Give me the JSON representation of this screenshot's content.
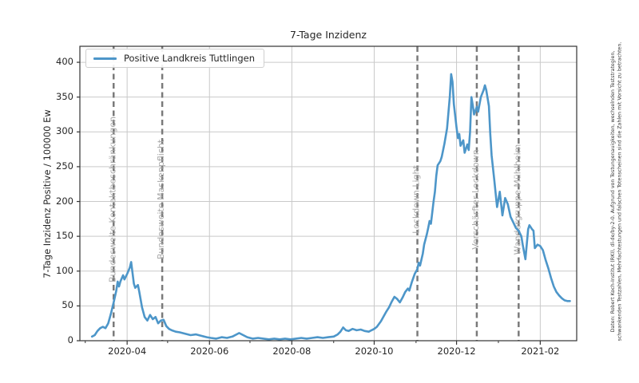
{
  "figure": {
    "background": "#ffffff"
  },
  "caption": {
    "line1": "Daten: Robert Koch-Institut (RKI), dl-de/by-2-0. Aufgrund von Testungenauigkeiten, wechselnden Teststrategien,",
    "line2": "schwankenden Testzahlen, Mehrfachtestungen und falschen Totenscheinen sind die Zahlen mit Vorsicht zu betrachten."
  },
  "chart_data": {
    "type": "line",
    "title": "7-Tage Inzidenz",
    "xlabel": "",
    "ylabel": "7-Tage Inzidenz Positive / 100000 Ew",
    "legend": [
      "Positive Landkreis Tuttlingen"
    ],
    "legend_position": "upper left",
    "grid": true,
    "ylim": [
      0,
      423
    ],
    "y_ticks": [
      0,
      50,
      100,
      150,
      200,
      250,
      300,
      350,
      400
    ],
    "x_ticks": [
      {
        "label": "2020-04",
        "date": "2020-04-01"
      },
      {
        "label": "2020-06",
        "date": "2020-06-01"
      },
      {
        "label": "2020-08",
        "date": "2020-08-01"
      },
      {
        "label": "2020-10",
        "date": "2020-10-01"
      },
      {
        "label": "2020-12",
        "date": "2020-12-01"
      },
      {
        "label": "2021-02",
        "date": "2021-02-01"
      }
    ],
    "x_minor_ticks": [
      "2020-03-01",
      "2020-05-01",
      "2020-07-01",
      "2020-09-01",
      "2020-11-01",
      "2021-01-01"
    ],
    "x_range": [
      "2020-02-26",
      "2021-02-28"
    ],
    "event_lines": [
      {
        "date": "2020-03-22",
        "label": "Bundesweite Kontaktbeschränkungen"
      },
      {
        "date": "2020-04-27",
        "label": "Bundesweite Maskenpflicht"
      },
      {
        "date": "2020-11-02",
        "label": "Lockdown Light"
      },
      {
        "date": "2020-12-16",
        "label": "Verschärfter Lockdown"
      },
      {
        "date": "2021-01-16",
        "label": "Wandergruppe Mühlheim"
      }
    ],
    "colors": {
      "line": "#4d96c9",
      "event_line": "#7a7a7a",
      "event_label": "#a8a8a8",
      "grid": "#c9c9c9",
      "spine": "#333333",
      "text": "#262626"
    },
    "series": [
      {
        "name": "Positive Landkreis Tuttlingen",
        "color": "#4d96c9",
        "points": [
          [
            "2020-03-06",
            6
          ],
          [
            "2020-03-08",
            8
          ],
          [
            "2020-03-10",
            14
          ],
          [
            "2020-03-12",
            18
          ],
          [
            "2020-03-14",
            20
          ],
          [
            "2020-03-16",
            18
          ],
          [
            "2020-03-18",
            25
          ],
          [
            "2020-03-20",
            39
          ],
          [
            "2020-03-22",
            55
          ],
          [
            "2020-03-24",
            72
          ],
          [
            "2020-03-25",
            85
          ],
          [
            "2020-03-26",
            78
          ],
          [
            "2020-03-27",
            85
          ],
          [
            "2020-03-29",
            94
          ],
          [
            "2020-03-30",
            88
          ],
          [
            "2020-04-01",
            96
          ],
          [
            "2020-04-03",
            105
          ],
          [
            "2020-04-04",
            113
          ],
          [
            "2020-04-06",
            82
          ],
          [
            "2020-04-07",
            76
          ],
          [
            "2020-04-09",
            80
          ],
          [
            "2020-04-10",
            70
          ],
          [
            "2020-04-12",
            48
          ],
          [
            "2020-04-14",
            34
          ],
          [
            "2020-04-16",
            29
          ],
          [
            "2020-04-18",
            37
          ],
          [
            "2020-04-20",
            31
          ],
          [
            "2020-04-22",
            34
          ],
          [
            "2020-04-24",
            25
          ],
          [
            "2020-04-26",
            29
          ],
          [
            "2020-04-28",
            30
          ],
          [
            "2020-04-30",
            21
          ],
          [
            "2020-05-02",
            17
          ],
          [
            "2020-05-04",
            15
          ],
          [
            "2020-05-07",
            13
          ],
          [
            "2020-05-10",
            12
          ],
          [
            "2020-05-14",
            10
          ],
          [
            "2020-05-18",
            8
          ],
          [
            "2020-05-22",
            9
          ],
          [
            "2020-05-26",
            7
          ],
          [
            "2020-05-30",
            5
          ],
          [
            "2020-06-02",
            4
          ],
          [
            "2020-06-06",
            3
          ],
          [
            "2020-06-10",
            5
          ],
          [
            "2020-06-14",
            4
          ],
          [
            "2020-06-18",
            6
          ],
          [
            "2020-06-21",
            9
          ],
          [
            "2020-06-23",
            11
          ],
          [
            "2020-06-26",
            8
          ],
          [
            "2020-06-29",
            5
          ],
          [
            "2020-07-03",
            3
          ],
          [
            "2020-07-07",
            4
          ],
          [
            "2020-07-11",
            3
          ],
          [
            "2020-07-15",
            2
          ],
          [
            "2020-07-19",
            3
          ],
          [
            "2020-07-23",
            2
          ],
          [
            "2020-07-27",
            3
          ],
          [
            "2020-07-31",
            2
          ],
          [
            "2020-08-04",
            3
          ],
          [
            "2020-08-08",
            4
          ],
          [
            "2020-08-12",
            3
          ],
          [
            "2020-08-16",
            4
          ],
          [
            "2020-08-20",
            5
          ],
          [
            "2020-08-24",
            4
          ],
          [
            "2020-08-28",
            5
          ],
          [
            "2020-09-01",
            6
          ],
          [
            "2020-09-04",
            9
          ],
          [
            "2020-09-06",
            13
          ],
          [
            "2020-09-08",
            19
          ],
          [
            "2020-09-10",
            15
          ],
          [
            "2020-09-12",
            14
          ],
          [
            "2020-09-15",
            17
          ],
          [
            "2020-09-18",
            15
          ],
          [
            "2020-09-21",
            16
          ],
          [
            "2020-09-24",
            14
          ],
          [
            "2020-09-27",
            13
          ],
          [
            "2020-09-29",
            15
          ],
          [
            "2020-10-01",
            17
          ],
          [
            "2020-10-03",
            20
          ],
          [
            "2020-10-06",
            28
          ],
          [
            "2020-10-08",
            35
          ],
          [
            "2020-10-10",
            42
          ],
          [
            "2020-10-12",
            48
          ],
          [
            "2020-10-14",
            56
          ],
          [
            "2020-10-16",
            63
          ],
          [
            "2020-10-18",
            60
          ],
          [
            "2020-10-20",
            55
          ],
          [
            "2020-10-22",
            62
          ],
          [
            "2020-10-24",
            70
          ],
          [
            "2020-10-26",
            75
          ],
          [
            "2020-10-27",
            72
          ],
          [
            "2020-10-29",
            85
          ],
          [
            "2020-10-31",
            96
          ],
          [
            "2020-11-02",
            103
          ],
          [
            "2020-11-03",
            112
          ],
          [
            "2020-11-04",
            108
          ],
          [
            "2020-11-06",
            125
          ],
          [
            "2020-11-07",
            138
          ],
          [
            "2020-11-09",
            153
          ],
          [
            "2020-11-10",
            162
          ],
          [
            "2020-11-11",
            172
          ],
          [
            "2020-11-12",
            168
          ],
          [
            "2020-11-14",
            200
          ],
          [
            "2020-11-15",
            214
          ],
          [
            "2020-11-16",
            237
          ],
          [
            "2020-11-17",
            252
          ],
          [
            "2020-11-19",
            258
          ],
          [
            "2020-11-20",
            264
          ],
          [
            "2020-11-22",
            283
          ],
          [
            "2020-11-24",
            305
          ],
          [
            "2020-11-26",
            350
          ],
          [
            "2020-11-27",
            383
          ],
          [
            "2020-11-28",
            372
          ],
          [
            "2020-11-29",
            340
          ],
          [
            "2020-12-01",
            306
          ],
          [
            "2020-12-02",
            291
          ],
          [
            "2020-12-03",
            297
          ],
          [
            "2020-12-04",
            280
          ],
          [
            "2020-12-06",
            288
          ],
          [
            "2020-12-07",
            270
          ],
          [
            "2020-12-09",
            282
          ],
          [
            "2020-12-10",
            274
          ],
          [
            "2020-12-11",
            300
          ],
          [
            "2020-12-12",
            350
          ],
          [
            "2020-12-13",
            338
          ],
          [
            "2020-12-14",
            325
          ],
          [
            "2020-12-16",
            336
          ],
          [
            "2020-12-17",
            329
          ],
          [
            "2020-12-19",
            350
          ],
          [
            "2020-12-21",
            360
          ],
          [
            "2020-12-22",
            367
          ],
          [
            "2020-12-23",
            360
          ],
          [
            "2020-12-25",
            337
          ],
          [
            "2020-12-26",
            297
          ],
          [
            "2020-12-27",
            266
          ],
          [
            "2020-12-29",
            230
          ],
          [
            "2020-12-31",
            192
          ],
          [
            "2021-01-02",
            214
          ],
          [
            "2021-01-04",
            180
          ],
          [
            "2021-01-06",
            205
          ],
          [
            "2021-01-08",
            196
          ],
          [
            "2021-01-10",
            178
          ],
          [
            "2021-01-12",
            170
          ],
          [
            "2021-01-14",
            162
          ],
          [
            "2021-01-16",
            158
          ],
          [
            "2021-01-18",
            150
          ],
          [
            "2021-01-19",
            138
          ],
          [
            "2021-01-21",
            117
          ],
          [
            "2021-01-23",
            160
          ],
          [
            "2021-01-24",
            166
          ],
          [
            "2021-01-26",
            160
          ],
          [
            "2021-01-27",
            158
          ],
          [
            "2021-01-28",
            133
          ],
          [
            "2021-01-30",
            138
          ],
          [
            "2021-02-01",
            136
          ],
          [
            "2021-02-03",
            130
          ],
          [
            "2021-02-05",
            116
          ],
          [
            "2021-02-07",
            104
          ],
          [
            "2021-02-09",
            90
          ],
          [
            "2021-02-11",
            78
          ],
          [
            "2021-02-13",
            70
          ],
          [
            "2021-02-15",
            65
          ],
          [
            "2021-02-17",
            61
          ],
          [
            "2021-02-19",
            58
          ],
          [
            "2021-02-21",
            57
          ],
          [
            "2021-02-23",
            57
          ]
        ]
      }
    ]
  }
}
